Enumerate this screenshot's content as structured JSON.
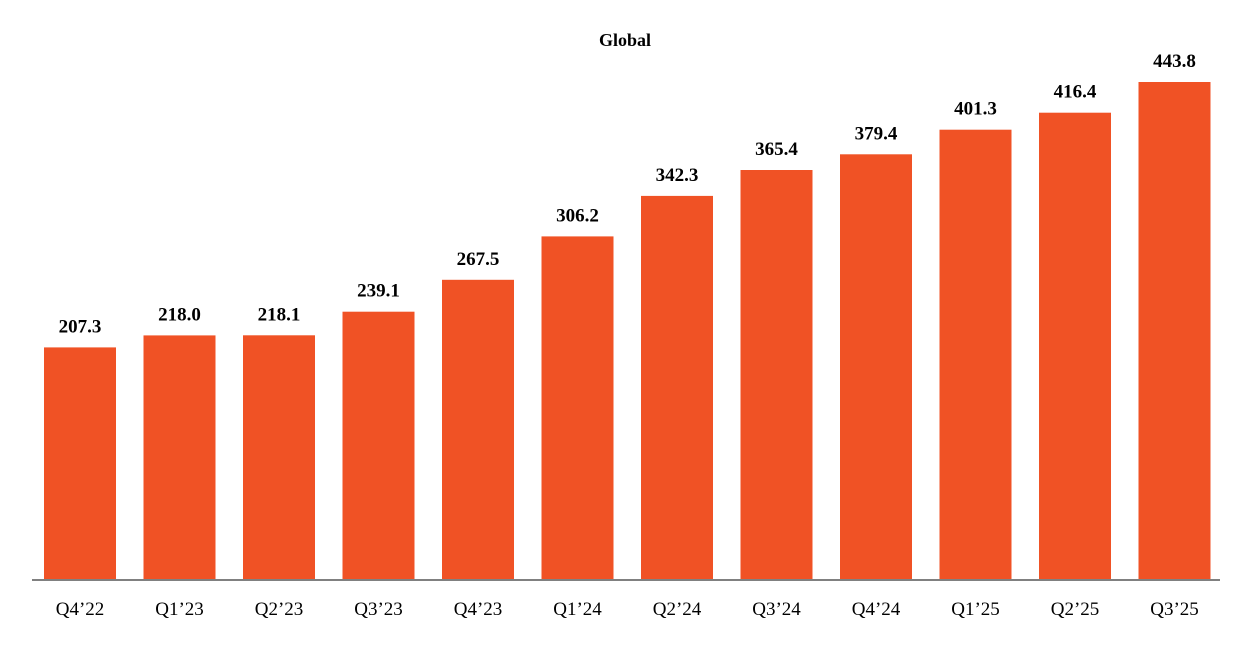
{
  "chart_data": {
    "type": "bar",
    "title": "Global",
    "xlabel": "",
    "ylabel": "",
    "categories": [
      "Q4’22",
      "Q1’23",
      "Q2’23",
      "Q3’23",
      "Q4’23",
      "Q1’24",
      "Q2’24",
      "Q3’24",
      "Q4’24",
      "Q1’25",
      "Q2’25",
      "Q3’25"
    ],
    "values": [
      207.3,
      218.0,
      218.1,
      239.1,
      267.5,
      306.2,
      342.3,
      365.4,
      379.4,
      401.3,
      416.4,
      443.8
    ],
    "value_labels": [
      "207.3",
      "218.0",
      "218.1",
      "239.1",
      "267.5",
      "306.2",
      "342.3",
      "365.4",
      "379.4",
      "401.3",
      "416.4",
      "443.8"
    ],
    "ylim": [
      0,
      443.8
    ],
    "grid": false,
    "legend": "none",
    "bar_color": "#F05225",
    "axis_color": "#808080"
  }
}
